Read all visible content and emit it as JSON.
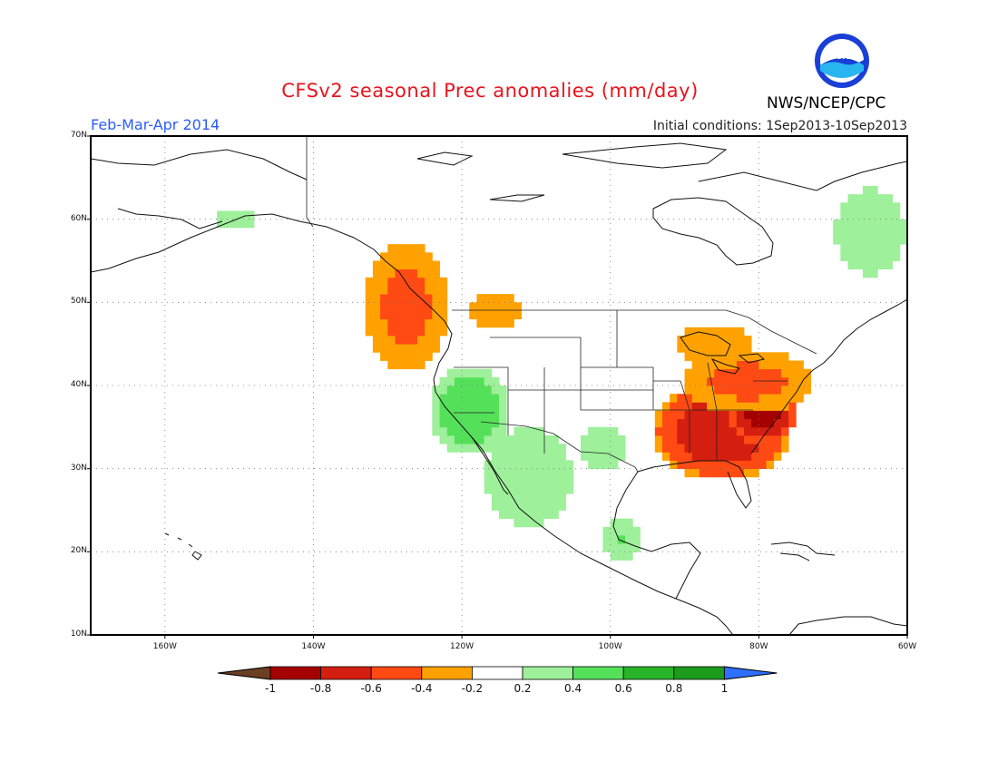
{
  "title": "CFSv2 seasonal Prec anomalies (mm/day)",
  "agency": "NWS/NCEP/CPC",
  "logo_text": "NOAA",
  "period": "Feb-Mar-Apr 2014",
  "initial_conditions": "Initial conditions: 1Sep2013-10Sep2013",
  "axes": {
    "lon_min": -170,
    "lon_max": -60,
    "lat_min": 10,
    "lat_max": 70,
    "lat_labels": [
      "70N",
      "60N",
      "50N",
      "40N",
      "30N",
      "20N",
      "10N"
    ],
    "lon_labels": [
      "160W",
      "140W",
      "120W",
      "100W",
      "80W",
      "60W"
    ]
  },
  "colorbar": {
    "labels": [
      "-1",
      "-0.8",
      "-0.6",
      "-0.4",
      "-0.2",
      "0.2",
      "0.4",
      "0.6",
      "0.8",
      "1"
    ],
    "colors": [
      "#6b3f22",
      "#a50000",
      "#d31e10",
      "#ff4a14",
      "#ffa100",
      "#ffffff",
      "#9ef09a",
      "#55e05a",
      "#28b428",
      "#1c9a1c",
      "#2f6fff"
    ]
  },
  "chart_data": {
    "type": "heatmap",
    "variable": "Precipitation anomaly (mm/day)",
    "region": "North America",
    "regions": [
      {
        "area": "Southeast US / Gulf Coast",
        "lon": [
          -94,
          -76
        ],
        "lat": [
          29,
          40
        ],
        "value": -0.8
      },
      {
        "area": "Mid-Atlantic / Carolinas",
        "lon": [
          -84,
          -75
        ],
        "lat": [
          33,
          40
        ],
        "value": -0.9
      },
      {
        "area": "Ohio Valley / Northeast",
        "lon": [
          -90,
          -73
        ],
        "lat": [
          37,
          44
        ],
        "value": -0.5
      },
      {
        "area": "Great Lakes",
        "lon": [
          -92,
          -80
        ],
        "lat": [
          42,
          48
        ],
        "value": -0.3
      },
      {
        "area": "Pacific Northwest coast",
        "lon": [
          -133,
          -122
        ],
        "lat": [
          42,
          57
        ],
        "value": -0.5
      },
      {
        "area": "Northern Rockies",
        "lon": [
          -120,
          -111
        ],
        "lat": [
          46,
          52
        ],
        "value": -0.3
      },
      {
        "area": "California / Nevada",
        "lon": [
          -124,
          -114
        ],
        "lat": [
          32,
          42
        ],
        "value": 0.6
      },
      {
        "area": "Desert Southwest / Baja",
        "lon": [
          -117,
          -105
        ],
        "lat": [
          23,
          35
        ],
        "value": 0.4
      },
      {
        "area": "Texas / Southern Plains",
        "lon": [
          -105,
          -97
        ],
        "lat": [
          29,
          36
        ],
        "value": 0.3
      },
      {
        "area": "Eastern Mexico",
        "lon": [
          -101,
          -96
        ],
        "lat": [
          19,
          24
        ],
        "value": 0.4
      },
      {
        "area": "Alaska",
        "lon": [
          -153,
          -148
        ],
        "lat": [
          59,
          61
        ],
        "value": 0.4
      },
      {
        "area": "Labrador / Newfoundland",
        "lon": [
          -70,
          -60
        ],
        "lat": [
          53,
          64
        ],
        "value": 0.4
      }
    ]
  }
}
